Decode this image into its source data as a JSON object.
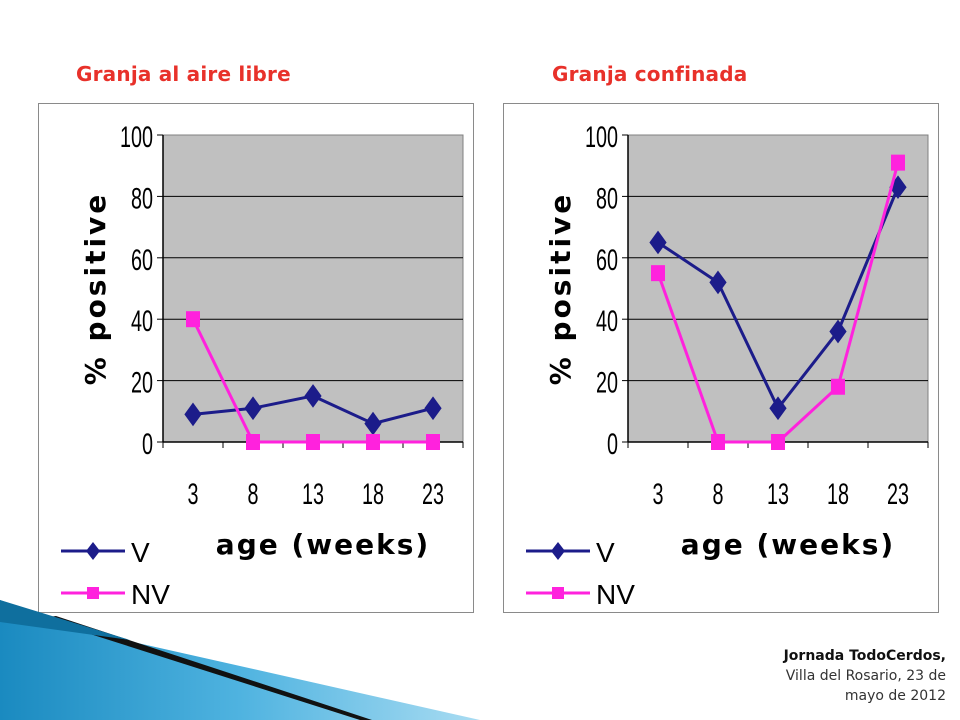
{
  "panels": {
    "left_title": "Granja al aire libre",
    "right_title": "Granja confinada"
  },
  "footer": {
    "line1": "Jornada TodoCerdos,",
    "line2": "Villa del Rosario, 23 de",
    "line3": "mayo de 2012"
  },
  "colors": {
    "V": "#1c1c8a",
    "NV": "#ff22dd",
    "plot_bg": "#c0c0c0",
    "title": "#e8312a"
  },
  "chart_data": [
    {
      "type": "line",
      "categories": [
        "3",
        "8",
        "13",
        "18",
        "23"
      ],
      "ylabel": "% positive",
      "xlabel": "age (weeks)",
      "ylim": [
        0,
        100
      ],
      "yticks": [
        "0",
        "20",
        "40",
        "60",
        "80",
        "100"
      ],
      "grid": true,
      "legend": "bottom-left",
      "series": [
        {
          "name": "V",
          "values": [
            9,
            11,
            15,
            6,
            11
          ]
        },
        {
          "name": "NV",
          "values": [
            40,
            0,
            0,
            0,
            0
          ]
        }
      ]
    },
    {
      "type": "line",
      "categories": [
        "3",
        "8",
        "13",
        "18",
        "23"
      ],
      "ylabel": "% positive",
      "xlabel": "age (weeks)",
      "ylim": [
        0,
        100
      ],
      "yticks": [
        "0",
        "20",
        "40",
        "60",
        "80",
        "100"
      ],
      "grid": true,
      "legend": "bottom-left",
      "series": [
        {
          "name": "V",
          "values": [
            65,
            52,
            11,
            36,
            83
          ]
        },
        {
          "name": "NV",
          "values": [
            55,
            0,
            0,
            18,
            91
          ]
        }
      ]
    }
  ]
}
